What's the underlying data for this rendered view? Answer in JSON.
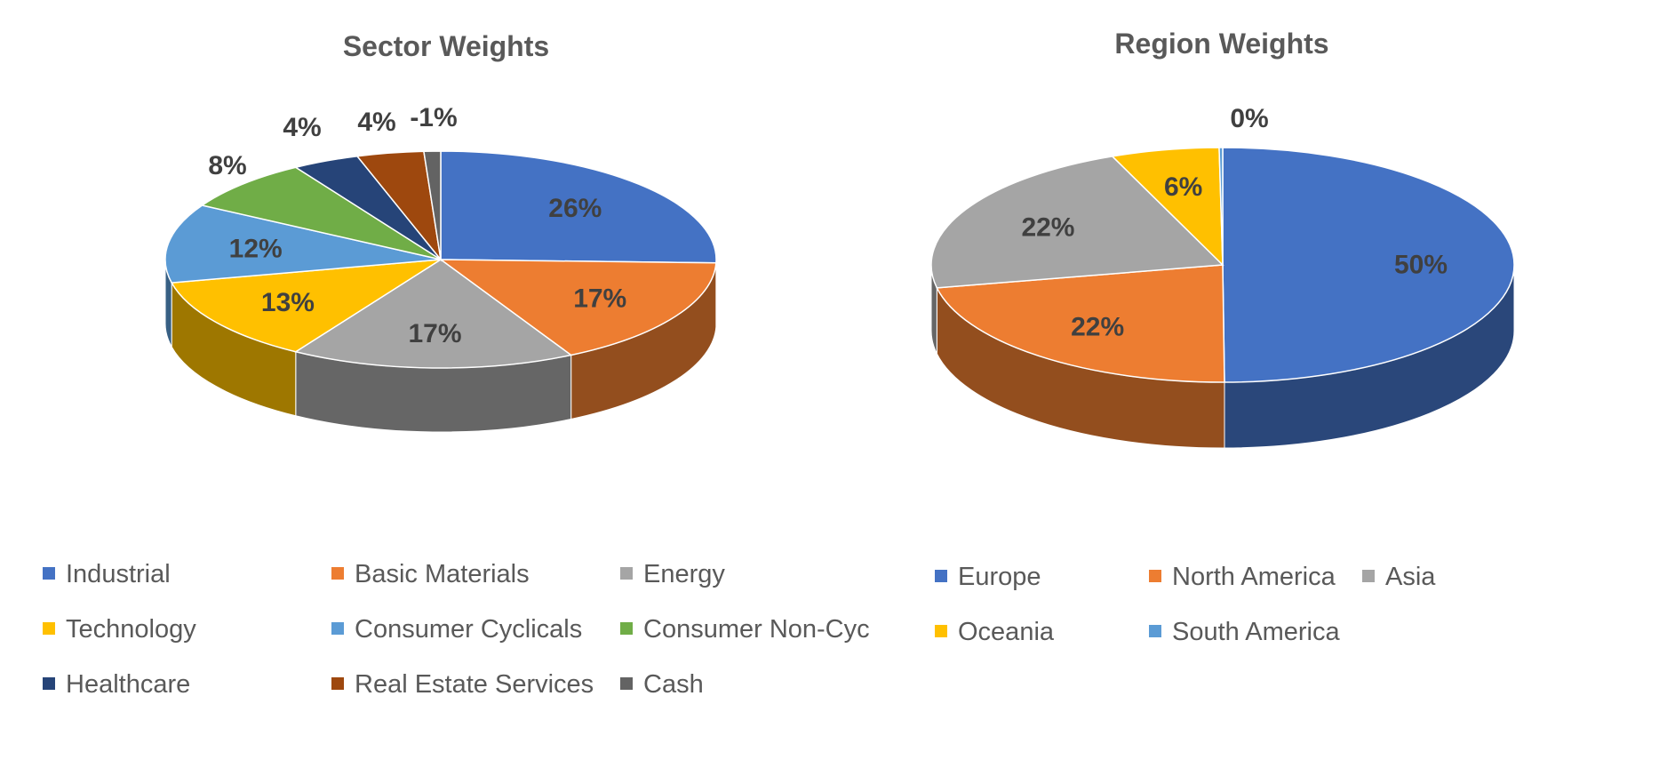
{
  "chart_data": [
    {
      "type": "pie",
      "title": "Sector Weights",
      "categories": [
        "Industrial",
        "Basic Materials",
        "Energy",
        "Technology",
        "Consumer Cyclicals",
        "Consumer Non-Cyc",
        "Healthcare",
        "Real Estate Services",
        "Cash"
      ],
      "values": [
        26,
        17,
        17,
        13,
        12,
        8,
        4,
        4,
        -1
      ],
      "data_labels": [
        "26%",
        "17%",
        "17%",
        "13%",
        "12%",
        "8%",
        "4%",
        "4%",
        "-1%"
      ],
      "colors": [
        "#4472C4",
        "#ED7D31",
        "#A5A5A5",
        "#FFC000",
        "#5B9BD5",
        "#70AD47",
        "#264478",
        "#9E480E",
        "#636363"
      ],
      "style": "3d",
      "legend": "bottom"
    },
    {
      "type": "pie",
      "title": "Region Weights",
      "categories": [
        "Europe",
        "North America",
        "Asia",
        "Oceania",
        "South America"
      ],
      "values": [
        50,
        22,
        22,
        6,
        0
      ],
      "data_labels": [
        "50%",
        "22%",
        "22%",
        "6%",
        "0%"
      ],
      "colors": [
        "#4472C4",
        "#ED7D31",
        "#A5A5A5",
        "#FFC000",
        "#5B9BD5"
      ],
      "style": "3d",
      "legend": "bottom"
    }
  ]
}
